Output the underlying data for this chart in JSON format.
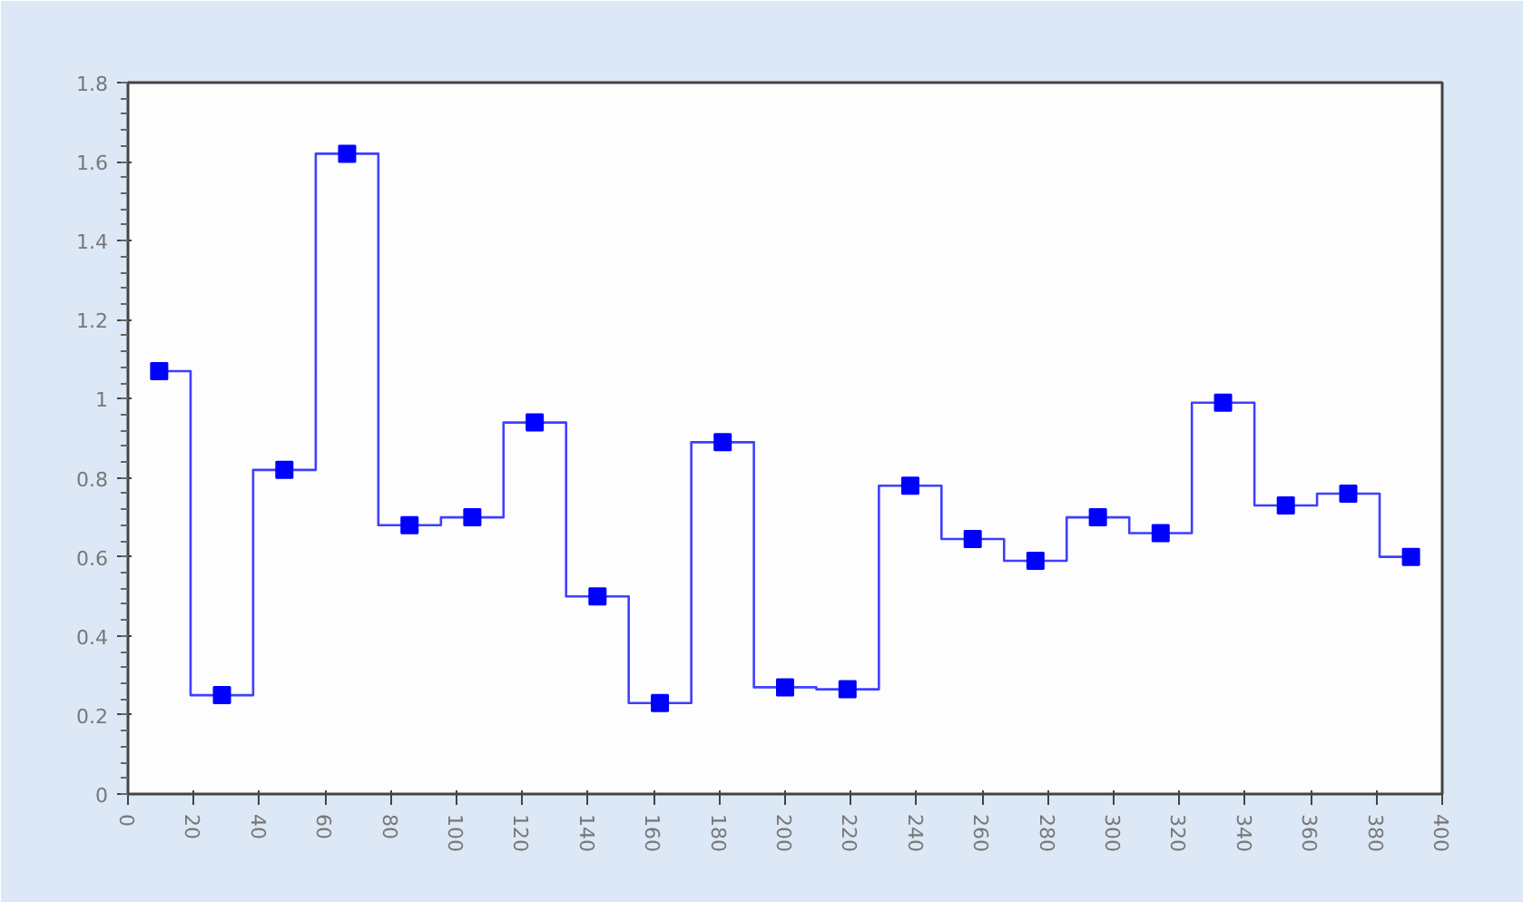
{
  "chart_data": {
    "type": "step",
    "x": [
      9.5,
      28.6,
      47.6,
      66.7,
      85.7,
      104.8,
      123.8,
      142.9,
      161.9,
      181.0,
      200.0,
      219.0,
      238.1,
      257.1,
      276.2,
      295.2,
      314.3,
      333.3,
      352.4,
      371.4,
      390.5
    ],
    "series": [
      {
        "color": "#0000ff",
        "values": [
          1.07,
          0.25,
          0.82,
          1.62,
          0.68,
          0.7,
          0.94,
          0.5,
          0.23,
          0.89,
          0.27,
          0.265,
          0.78,
          0.645,
          0.59,
          0.7,
          0.66,
          0.99,
          0.73,
          0.76,
          0.6
        ]
      }
    ],
    "xlim": [
      0,
      400
    ],
    "xticks": [
      0,
      20,
      40,
      60,
      80,
      100,
      120,
      140,
      160,
      180,
      200,
      220,
      240,
      260,
      280,
      300,
      320,
      340,
      360,
      380,
      400
    ],
    "ylim": [
      0,
      1.8
    ],
    "yticks": [
      0,
      {
        "value": 0.2,
        "label": "0.2"
      },
      {
        "value": 0.4,
        "label": "0.4"
      },
      {
        "value": 0.6,
        "label": "0.6"
      },
      {
        "value": 0.8,
        "label": "0.8"
      },
      1,
      {
        "value": 1.2,
        "label": "1.2"
      },
      {
        "value": 1.4,
        "label": "1.4"
      },
      {
        "value": 1.6,
        "label": "1.6"
      },
      {
        "value": 1.8,
        "label": "1.8"
      }
    ],
    "marker": "square",
    "grid": false
  }
}
